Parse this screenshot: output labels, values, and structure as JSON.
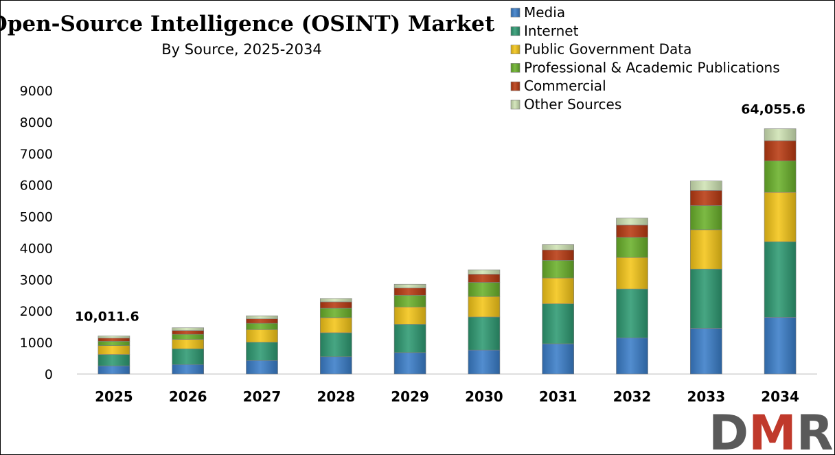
{
  "chart_data": {
    "type": "bar",
    "stacked": true,
    "title": "Open-Source Intelligence (OSINT) Market",
    "subtitle": "By Source, 2025-2034",
    "xlabel": "",
    "ylabel": "",
    "ylim": [
      0,
      9000
    ],
    "yticks": [
      "0",
      "1000",
      "2000",
      "3000",
      "4000",
      "5000",
      "6000",
      "7000",
      "8000",
      "9000"
    ],
    "categories": [
      "2025",
      "2026",
      "2027",
      "2028",
      "2029",
      "2030",
      "2031",
      "2032",
      "2033",
      "2034"
    ],
    "series": [
      {
        "name": "Media",
        "color": "#3a7dc9",
        "values": [
          260,
          300,
          430,
          550,
          680,
          760,
          960,
          1150,
          1450,
          1800
        ]
      },
      {
        "name": "Internet",
        "color": "#2e9a72",
        "values": [
          360,
          500,
          580,
          760,
          900,
          1050,
          1270,
          1550,
          1880,
          2400
        ]
      },
      {
        "name": "Public Government Data",
        "color": "#f4c518",
        "values": [
          280,
          300,
          400,
          480,
          550,
          650,
          820,
          1000,
          1250,
          1570
        ]
      },
      {
        "name": "Professional & Academic Publications",
        "color": "#6ab12b",
        "values": [
          140,
          160,
          200,
          300,
          370,
          450,
          560,
          640,
          770,
          1000
        ]
      },
      {
        "name": "Commercial",
        "color": "#b83a12",
        "values": [
          100,
          120,
          140,
          200,
          230,
          260,
          330,
          390,
          480,
          640
        ]
      },
      {
        "name": "Other Sources",
        "color": "#cfe3b4",
        "values": [
          70,
          90,
          100,
          110,
          120,
          140,
          170,
          220,
          300,
          380
        ]
      }
    ],
    "annotations": [
      {
        "category": "2025",
        "text": "10,011.6"
      },
      {
        "category": "2034",
        "text": "64,055.6"
      }
    ],
    "legend_position": "top-right",
    "grid": false
  },
  "logo": {
    "text": "DMR",
    "colors": [
      "#5a5a5a",
      "#c0392b"
    ]
  }
}
